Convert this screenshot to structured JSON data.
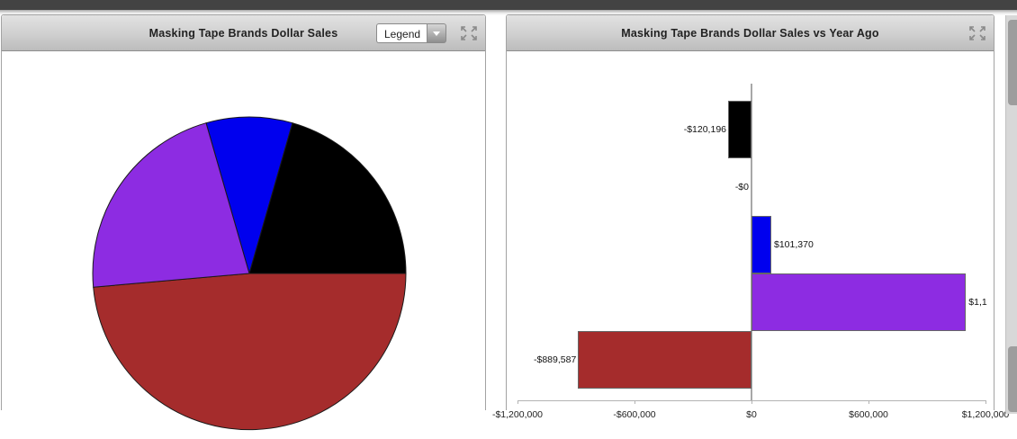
{
  "window": {
    "top_bar_color": "#434343"
  },
  "left_panel": {
    "title": "Masking Tape Brands Dollar Sales",
    "legend_dropdown": {
      "selected_label": "Legend"
    }
  },
  "right_panel": {
    "title": "Masking Tape Brands Dollar Sales vs Year Ago"
  },
  "palette": {
    "blue": "#0000ee",
    "black": "#000000",
    "red": "#a52c2c",
    "purple": "#8d2ce2"
  },
  "chart_data": [
    {
      "type": "pie",
      "title": "Masking Tape Brands Dollar Sales",
      "legend": "collapsed dropdown labeled 'Legend'",
      "slices": [
        {
          "name": "blue-brand",
          "color": "#0000ee",
          "percent": 8.9,
          "start_deg": -16,
          "end_deg": 16
        },
        {
          "name": "black-brand",
          "color": "#000000",
          "percent": 20.6,
          "start_deg": 16,
          "end_deg": 90
        },
        {
          "name": "red-brand",
          "color": "#a52c2c",
          "percent": 48.6,
          "start_deg": 90,
          "end_deg": 265
        },
        {
          "name": "purple-brand",
          "color": "#8d2ce2",
          "percent": 21.9,
          "start_deg": 265,
          "end_deg": 344
        }
      ]
    },
    {
      "type": "bar",
      "orientation": "horizontal",
      "title": "Masking Tape Brands Dollar Sales vs Year Ago",
      "xlim": [
        -1200000,
        1200000
      ],
      "x_ticks": [
        {
          "value": -1200000,
          "label": "-$1,200,000"
        },
        {
          "value": -600000,
          "label": "-$600,000"
        },
        {
          "value": 0,
          "label": "$0"
        },
        {
          "value": 600000,
          "label": "$600,000"
        },
        {
          "value": 1200000,
          "label": "$1,200,000"
        }
      ],
      "bars": [
        {
          "name": "black-brand",
          "value": -120196,
          "label": "-$120,196",
          "color": "#000000"
        },
        {
          "name": "zero-brand",
          "value": 0,
          "label": "-$0",
          "color": null
        },
        {
          "name": "blue-brand",
          "value": 101370,
          "label": "$101,370",
          "color": "#0000ee"
        },
        {
          "name": "purple-brand",
          "value": 1100000,
          "label": "$1,1",
          "label_truncated": true,
          "color": "#8d2ce2"
        },
        {
          "name": "red-brand",
          "value": -889587,
          "label": "-$889,587",
          "color": "#a52c2c"
        }
      ]
    }
  ]
}
